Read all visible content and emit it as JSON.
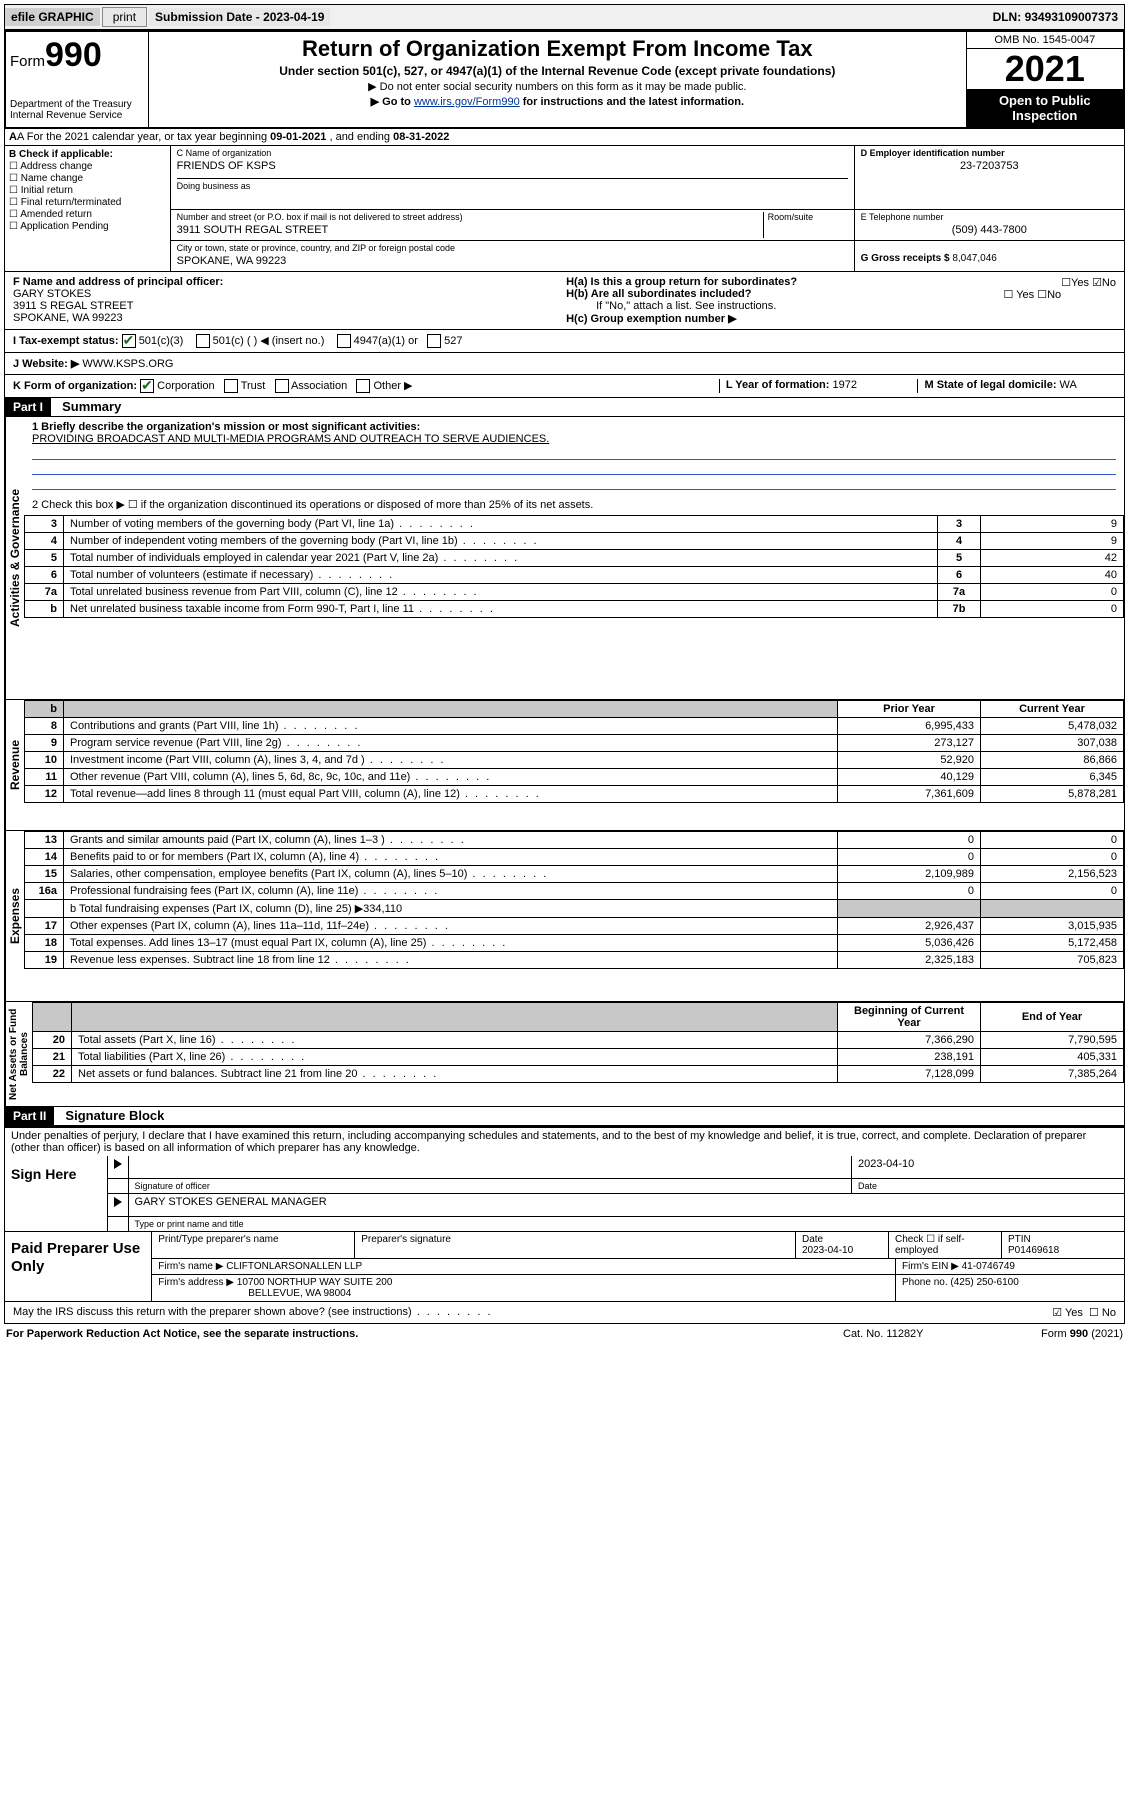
{
  "topbar": {
    "efile": "efile GRAPHIC",
    "print": "print",
    "submission_label": "Submission Date - ",
    "submission_date": "2023-04-19",
    "dln_label": "DLN: ",
    "dln": "93493109007373"
  },
  "header": {
    "form_prefix": "Form",
    "form_number": "990",
    "dept": "Department of the Treasury",
    "irs": "Internal Revenue Service",
    "title": "Return of Organization Exempt From Income Tax",
    "sub1": "Under section 501(c), 527, or 4947(a)(1) of the Internal Revenue Code (except private foundations)",
    "sub2": "▶ Do not enter social security numbers on this form as it may be made public.",
    "sub3_pre": "▶ Go to ",
    "sub3_link": "www.irs.gov/Form990",
    "sub3_post": " for instructions and the latest information.",
    "omb": "OMB No. 1545-0047",
    "year": "2021",
    "open_public": "Open to Public Inspection"
  },
  "row_a": {
    "text_pre": "A For the 2021 calendar year, or tax year beginning ",
    "begin": "09-01-2021",
    "mid": " , and ending ",
    "end": "08-31-2022"
  },
  "section_b": {
    "label": "B Check if applicable:",
    "items": [
      "☐ Address change",
      "☐ Name change",
      "☐ Initial return",
      "☐ Final return/terminated",
      "☐ Amended return",
      "☐ Application Pending"
    ]
  },
  "section_c": {
    "name_label": "C Name of organization",
    "name": "FRIENDS OF KSPS",
    "dba_label": "Doing business as",
    "addr_label": "Number and street (or P.O. box if mail is not delivered to street address)",
    "room_label": "Room/suite",
    "addr": "3911 SOUTH REGAL STREET",
    "city_label": "City or town, state or province, country, and ZIP or foreign postal code",
    "city": "SPOKANE, WA  99223"
  },
  "section_d": {
    "ein_label": "D Employer identification number",
    "ein": "23-7203753",
    "phone_label": "E Telephone number",
    "phone": "(509) 443-7800",
    "gross_label": "G Gross receipts $ ",
    "gross": "8,047,046"
  },
  "section_f": {
    "label": "F  Name and address of principal officer:",
    "name": "GARY STOKES",
    "addr1": "3911 S REGAL STREET",
    "addr2": "SPOKANE, WA  99223"
  },
  "section_h": {
    "ha": "H(a)  Is this a group return for subordinates?",
    "ha_yes": "☐Yes",
    "ha_no": "☑No",
    "hb": "H(b)  Are all subordinates included?",
    "hb_yes": "☐ Yes",
    "hb_no": "☐No",
    "hb_note": "If \"No,\" attach a list. See instructions.",
    "hc": "H(c)  Group exemption number ▶"
  },
  "section_i": {
    "label": "I    Tax-exempt status:",
    "opt1": "501(c)(3)",
    "opt2": "501(c) (   ) ◀ (insert no.)",
    "opt3": "4947(a)(1) or",
    "opt4": "527"
  },
  "section_j": {
    "label": "J   Website: ▶ ",
    "val": "WWW.KSPS.ORG"
  },
  "section_k": {
    "label": "K Form of organization:",
    "opts": [
      "Corporation",
      "Trust",
      "Association",
      "Other ▶"
    ],
    "l_label": "L Year of formation: ",
    "l_val": "1972",
    "m_label": "M State of legal domicile: ",
    "m_val": "WA"
  },
  "part1": {
    "header": "Part I",
    "title": "Summary",
    "mission_label": "1   Briefly describe the organization's mission or most significant activities:",
    "mission": "PROVIDING BROADCAST AND MULTI-MEDIA PROGRAMS AND OUTREACH TO SERVE AUDIENCES.",
    "line2": "2    Check this box ▶ ☐  if the organization discontinued its operations or disposed of more than 25% of its net assets.",
    "rows_top": [
      {
        "n": "3",
        "d": "Number of voting members of the governing body (Part VI, line 1a)",
        "b": "3",
        "v": "9"
      },
      {
        "n": "4",
        "d": "Number of independent voting members of the governing body (Part VI, line 1b)",
        "b": "4",
        "v": "9"
      },
      {
        "n": "5",
        "d": "Total number of individuals employed in calendar year 2021 (Part V, line 2a)",
        "b": "5",
        "v": "42"
      },
      {
        "n": "6",
        "d": "Total number of volunteers (estimate if necessary)",
        "b": "6",
        "v": "40"
      },
      {
        "n": "7a",
        "d": "Total unrelated business revenue from Part VIII, column (C), line 12",
        "b": "7a",
        "v": "0"
      },
      {
        "n": "b",
        "d": "Net unrelated business taxable income from Form 990-T, Part I, line 11",
        "b": "7b",
        "v": "0"
      }
    ],
    "col_prior": "Prior Year",
    "col_current": "Current Year",
    "revenue": [
      {
        "n": "8",
        "d": "Contributions and grants (Part VIII, line 1h)",
        "p": "6,995,433",
        "c": "5,478,032"
      },
      {
        "n": "9",
        "d": "Program service revenue (Part VIII, line 2g)",
        "p": "273,127",
        "c": "307,038"
      },
      {
        "n": "10",
        "d": "Investment income (Part VIII, column (A), lines 3, 4, and 7d )",
        "p": "52,920",
        "c": "86,866"
      },
      {
        "n": "11",
        "d": "Other revenue (Part VIII, column (A), lines 5, 6d, 8c, 9c, 10c, and 11e)",
        "p": "40,129",
        "c": "6,345"
      },
      {
        "n": "12",
        "d": "Total revenue—add lines 8 through 11 (must equal Part VIII, column (A), line 12)",
        "p": "7,361,609",
        "c": "5,878,281"
      }
    ],
    "expenses": [
      {
        "n": "13",
        "d": "Grants and similar amounts paid (Part IX, column (A), lines 1–3 )",
        "p": "0",
        "c": "0"
      },
      {
        "n": "14",
        "d": "Benefits paid to or for members (Part IX, column (A), line 4)",
        "p": "0",
        "c": "0"
      },
      {
        "n": "15",
        "d": "Salaries, other compensation, employee benefits (Part IX, column (A), lines 5–10)",
        "p": "2,109,989",
        "c": "2,156,523"
      },
      {
        "n": "16a",
        "d": "Professional fundraising fees (Part IX, column (A), line 11e)",
        "p": "0",
        "c": "0"
      }
    ],
    "line16b_label": "b   Total fundraising expenses (Part IX, column (D), line 25) ▶",
    "line16b_val": "334,110",
    "expenses2": [
      {
        "n": "17",
        "d": "Other expenses (Part IX, column (A), lines 11a–11d, 11f–24e)",
        "p": "2,926,437",
        "c": "3,015,935"
      },
      {
        "n": "18",
        "d": "Total expenses. Add lines 13–17 (must equal Part IX, column (A), line 25)",
        "p": "5,036,426",
        "c": "5,172,458"
      },
      {
        "n": "19",
        "d": "Revenue less expenses. Subtract line 18 from line 12",
        "p": "2,325,183",
        "c": "705,823"
      }
    ],
    "col_begin": "Beginning of Current Year",
    "col_end": "End of Year",
    "netassets": [
      {
        "n": "20",
        "d": "Total assets (Part X, line 16)",
        "p": "7,366,290",
        "c": "7,790,595"
      },
      {
        "n": "21",
        "d": "Total liabilities (Part X, line 26)",
        "p": "238,191",
        "c": "405,331"
      },
      {
        "n": "22",
        "d": "Net assets or fund balances. Subtract line 21 from line 20",
        "p": "7,128,099",
        "c": "7,385,264"
      }
    ],
    "side_gov": "Activities & Governance",
    "side_rev": "Revenue",
    "side_exp": "Expenses",
    "side_net": "Net Assets or Fund Balances"
  },
  "part2": {
    "header": "Part II",
    "title": "Signature Block",
    "intro": "Under penalties of perjury, I declare that I have examined this return, including accompanying schedules and statements, and to the best of my knowledge and belief, it is true, correct, and complete. Declaration of preparer (other than officer) is based on all information of which preparer has any knowledge.",
    "sign_here": "Sign Here",
    "sig_officer": "Signature of officer",
    "sig_date": "2023-04-10",
    "date_label": "Date",
    "officer_name": "GARY STOKES  GENERAL MANAGER",
    "type_name": "Type or print name and title",
    "paid": "Paid Preparer Use Only",
    "prep_name_label": "Print/Type preparer's name",
    "prep_sig_label": "Preparer's signature",
    "prep_date_label": "Date",
    "prep_date": "2023-04-10",
    "self_emp": "Check ☐ if self-employed",
    "ptin_label": "PTIN",
    "ptin": "P01469618",
    "firm_name_label": "Firm's name     ▶ ",
    "firm_name": "CLIFTONLARSONALLEN LLP",
    "firm_ein_label": "Firm's EIN ▶ ",
    "firm_ein": "41-0746749",
    "firm_addr_label": "Firm's address ▶ ",
    "firm_addr1": "10700 NORTHUP WAY SUITE 200",
    "firm_addr2": "BELLEVUE, WA  98004",
    "firm_phone_label": "Phone no. ",
    "firm_phone": "(425) 250-6100",
    "discuss": "May the IRS discuss this return with the preparer shown above? (see instructions)",
    "discuss_yes": "☑ Yes",
    "discuss_no": "☐ No"
  },
  "footer": {
    "left": "For Paperwork Reduction Act Notice, see the separate instructions.",
    "mid": "Cat. No. 11282Y",
    "right_pre": "Form ",
    "right_bold": "990",
    "right_post": " (2021)"
  }
}
